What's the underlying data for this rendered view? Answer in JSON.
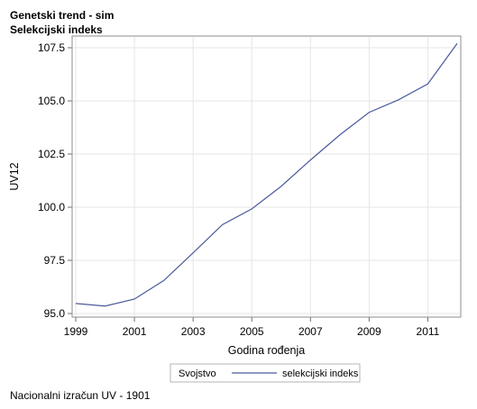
{
  "title_lines": [
    "Genetski trend - sim",
    "Selekcijski indeks"
  ],
  "footnote": "Nacionalni izračun UV - 1901",
  "chart_data": {
    "type": "line",
    "title": "Genetski trend - sim\nSelekcijski indeks",
    "xlabel": "Godina rođenja",
    "ylabel": "UV12",
    "x": [
      1999,
      2000,
      2001,
      2002,
      2003,
      2004,
      2005,
      2006,
      2007,
      2008,
      2009,
      2010,
      2011,
      2012
    ],
    "series": [
      {
        "name": "selekcijski indeks",
        "color": "#4a5a9a",
        "values": [
          95.47,
          95.35,
          95.68,
          96.55,
          97.85,
          99.18,
          99.92,
          100.98,
          102.22,
          103.4,
          104.46,
          105.05,
          105.8,
          107.7
        ]
      }
    ],
    "xticks": [
      "1999",
      "2001",
      "2003",
      "2005",
      "2007",
      "2009",
      "2011"
    ],
    "yticks": [
      "95.0",
      "97.5",
      "100.0",
      "102.5",
      "105.0",
      "107.5"
    ],
    "xlim": [
      1999,
      2012
    ],
    "ylim": [
      95.0,
      107.5
    ],
    "grid": true,
    "legend": {
      "title": "Svojstvo",
      "placement": "bottom-center",
      "entries": [
        "selekcijski indeks"
      ]
    }
  }
}
